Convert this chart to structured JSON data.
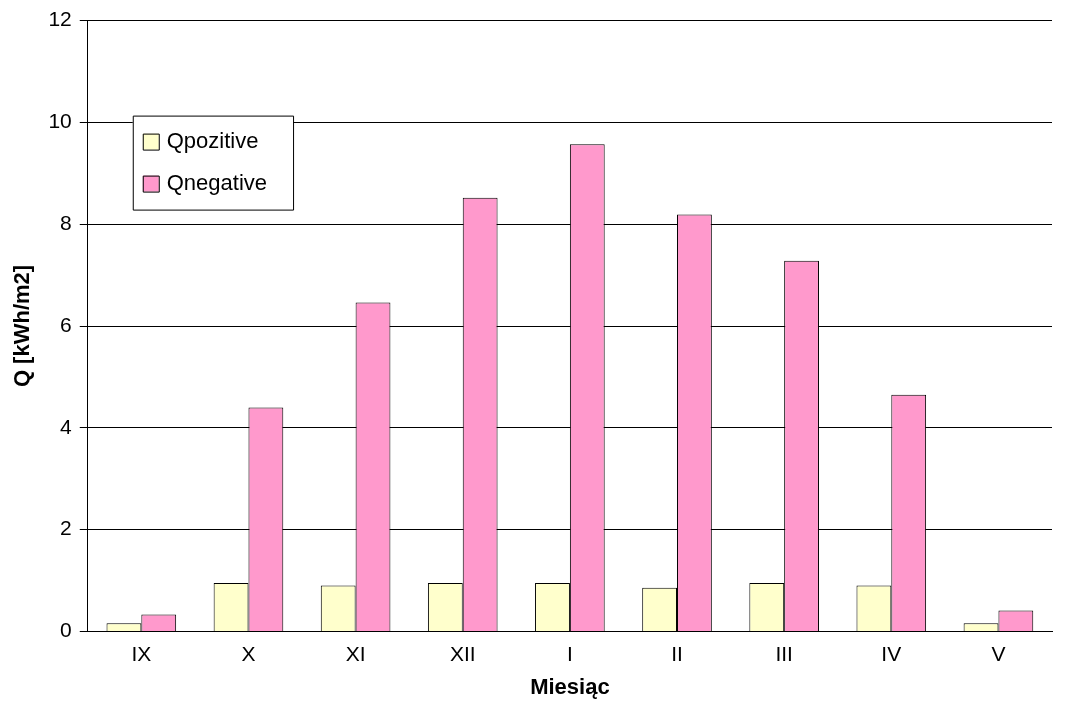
{
  "chart_data": {
    "type": "bar",
    "xlabel": "Miesiąc",
    "ylabel": "Q [kWh/m2]",
    "categories": [
      "IX",
      "X",
      "XI",
      "XII",
      "I",
      "II",
      "III",
      "IV",
      "V"
    ],
    "series": [
      {
        "name": "Qpozitive",
        "color": "#ffffcc",
        "values": [
          0.16,
          0.95,
          0.9,
          0.95,
          0.95,
          0.86,
          0.95,
          0.9,
          0.16
        ]
      },
      {
        "name": "Qnegative",
        "color": "#ff99cc",
        "values": [
          0.33,
          4.4,
          6.46,
          8.52,
          9.57,
          8.19,
          7.28,
          4.65,
          0.41
        ]
      }
    ],
    "ylim": [
      0,
      12
    ],
    "yticks": [
      0,
      2,
      4,
      6,
      8,
      10,
      12
    ],
    "grid": "y",
    "legend": "top left"
  }
}
